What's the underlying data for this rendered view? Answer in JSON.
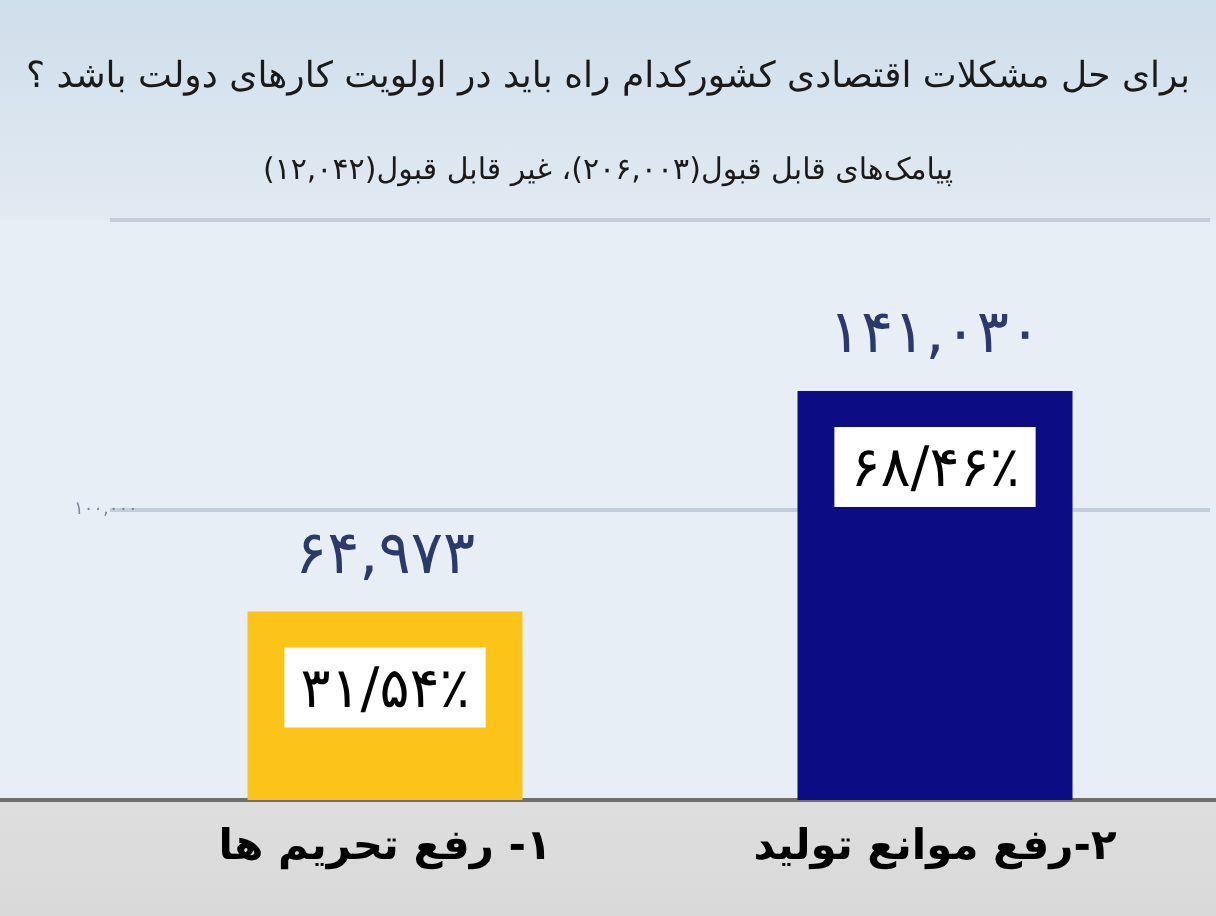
{
  "chart_data": {
    "type": "bar",
    "title": "برای حل مشکلات اقتصادی کشورکدام راه باید در اولویت کارهای دولت باشد ؟",
    "subtitle": "پیامک‌های قابل قبول(۲۰۶,۰۰۳)، غیر قابل قبول(۱۲,۰۴۲)",
    "categories": [
      "۱- رفع تحریم ها",
      "۲-رفع موانع تولید"
    ],
    "values": [
      64973,
      141030
    ],
    "colors": [
      "#fcc318",
      "#0c0c84"
    ],
    "value_labels": [
      "۶۴,۹۷۳",
      "۱۴۱,۰۳۰"
    ],
    "annotations": [
      "۳۱/۵۴٪",
      "۶۸/۴۶٪"
    ],
    "ylim": [
      0,
      200000
    ],
    "yticks": [
      {
        "value": 100000,
        "label": "۱۰۰,۰۰۰"
      },
      {
        "value": 200000,
        "label": null
      }
    ],
    "grid": "y"
  }
}
